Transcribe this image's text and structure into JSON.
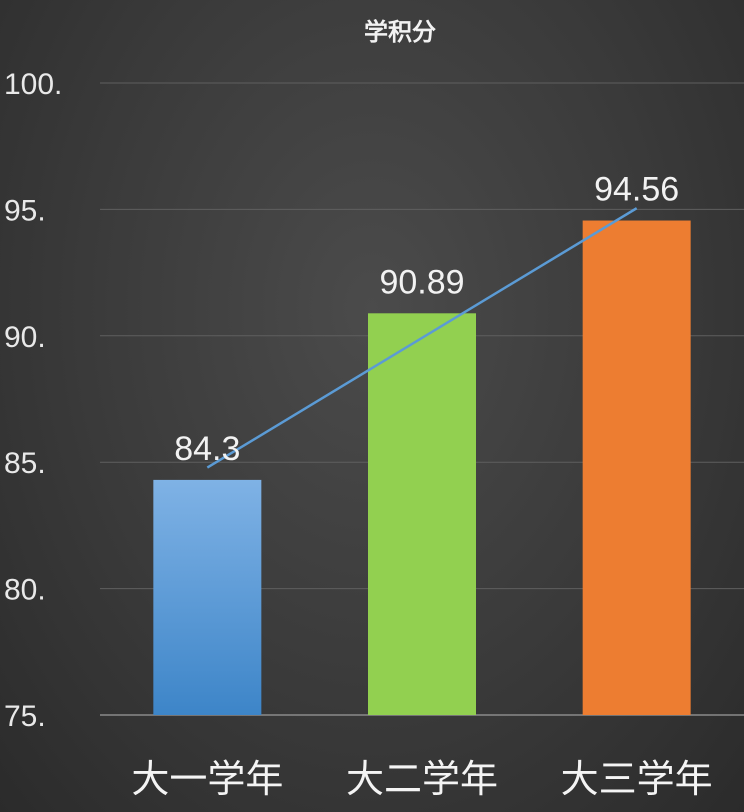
{
  "chart_data": {
    "type": "bar",
    "title": "学积分",
    "categories": [
      "大一学年",
      "大二学年",
      "大三学年"
    ],
    "values": [
      84.3,
      90.89,
      94.56
    ],
    "data_labels": [
      "84.3",
      "90.89",
      "94.56"
    ],
    "bar_colors": [
      "#5b9bd5",
      "#92d050",
      "#ed7d31"
    ],
    "trendline": {
      "type": "linear",
      "color": "#5b9bd5"
    },
    "ylim": [
      75,
      100
    ],
    "yticks": [
      75,
      80,
      85,
      90,
      95,
      100
    ],
    "ytick_labels": [
      "75.",
      "80.",
      "85.",
      "90.",
      "95.",
      "100."
    ],
    "xlabel": "",
    "ylabel": "",
    "grid": true,
    "legend": "none"
  }
}
